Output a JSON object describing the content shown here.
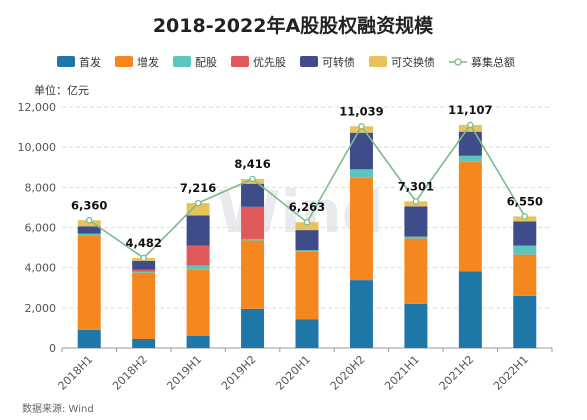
{
  "chart_data": {
    "type": "bar",
    "stacked": true,
    "title": "2018-2022年A股股权融资规模",
    "unit_label": "单位：亿元",
    "source": "数据来源: Wind",
    "watermark": "Wind",
    "categories": [
      "2018H1",
      "2018H2",
      "2019H1",
      "2019H2",
      "2020H1",
      "2020H2",
      "2021H1",
      "2021H2",
      "2022H1"
    ],
    "ylim": [
      0,
      12000
    ],
    "yticks": [
      0,
      2000,
      4000,
      6000,
      8000,
      10000,
      12000
    ],
    "ytick_labels": [
      "0",
      "2,000",
      "4,000",
      "6,000",
      "8,000",
      "10,000",
      "12,000"
    ],
    "grid": true,
    "legend_position": "top",
    "series": [
      {
        "name": "首发",
        "color": "#1f77a8",
        "values": [
          900,
          450,
          600,
          1950,
          1420,
          3380,
          2200,
          3820,
          2600
        ]
      },
      {
        "name": "增发",
        "color": "#f5871f",
        "values": [
          4700,
          3300,
          3300,
          3400,
          3400,
          5100,
          3250,
          5450,
          2050
        ]
      },
      {
        "name": "配股",
        "color": "#5bc5c0",
        "values": [
          100,
          50,
          200,
          80,
          50,
          420,
          100,
          300,
          450
        ]
      },
      {
        "name": "优先股",
        "color": "#e05a5a",
        "values": [
          0,
          100,
          1000,
          1600,
          0,
          0,
          0,
          0,
          0
        ]
      },
      {
        "name": "可转债",
        "color": "#3f4c8a",
        "values": [
          360,
          440,
          1500,
          1150,
          1000,
          1820,
          1500,
          1200,
          1200
        ]
      },
      {
        "name": "可交换债",
        "color": "#e8c35a",
        "values": [
          300,
          142,
          616,
          236,
          393,
          319,
          251,
          337,
          250
        ]
      }
    ],
    "totals": {
      "name": "募集总额",
      "color": "#7cbb8c",
      "values": [
        6360,
        4482,
        7216,
        8416,
        6263,
        11039,
        7301,
        11107,
        6550
      ],
      "labels": [
        "6,360",
        "4,482",
        "7,216",
        "8,416",
        "6,263",
        "11,039",
        "7,301",
        "11,107",
        "6,550"
      ]
    }
  }
}
